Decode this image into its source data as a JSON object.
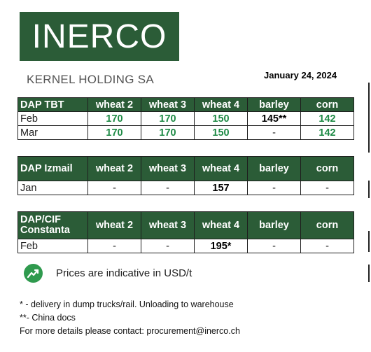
{
  "header": {
    "logo_text": "INERCO",
    "company": "KERNEL HOLDING SA",
    "date": "January 24, 2024"
  },
  "columns": [
    "wheat 2",
    "wheat 3",
    "wheat 4",
    "barley",
    "corn"
  ],
  "tables": [
    {
      "title_line1": "DAP TBT",
      "title_line2": "",
      "rows": [
        {
          "month": "Feb",
          "cells": [
            "170",
            "170",
            "150",
            "145**",
            "142"
          ]
        },
        {
          "month": "Mar",
          "cells": [
            "170",
            "170",
            "150",
            "-",
            "142"
          ]
        }
      ]
    },
    {
      "title_line1": "DAP Izmail",
      "title_line2": "",
      "rows": [
        {
          "month": "Jan",
          "cells": [
            "-",
            "-",
            "157",
            "-",
            "-"
          ]
        }
      ]
    },
    {
      "title_line1": "DAP/CIF",
      "title_line2": "Constanta",
      "rows": [
        {
          "month": "Feb",
          "cells": [
            "-",
            "-",
            "195*",
            "-",
            "-"
          ]
        }
      ]
    }
  ],
  "note": {
    "icon": "chart-growth-icon",
    "text": "Prices are indicative  in USD/t"
  },
  "footnotes": [
    "* - delivery in dump trucks/rail. Unloading to warehouse",
    "**- China docs",
    "For more details please contact: procurement@inerco.ch"
  ],
  "colors": {
    "brand_green": "#2b5c37",
    "price_green": "#1e8a45",
    "icon_green": "#2f9a4e"
  }
}
